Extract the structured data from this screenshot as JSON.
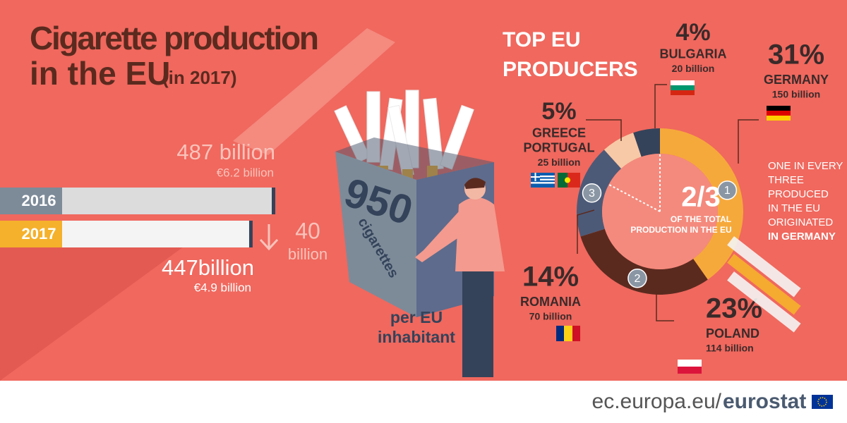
{
  "title": [
    "Cigarette production",
    "in the EU"
  ],
  "subtitle": "(in 2017)",
  "production": {
    "type": "bar",
    "categories": [
      "2016",
      "2017"
    ],
    "values": [
      487,
      447
    ],
    "value_labels": [
      "487 billion",
      "447billion"
    ],
    "value_eur_labels": [
      "€6.2 billion",
      "€4.9 billion"
    ],
    "colors": [
      "#7d8b99",
      "#f5b12b"
    ],
    "change": 40,
    "change_unit": "billion"
  },
  "per_inhabitant": {
    "value": 950,
    "unit": "cigarettes",
    "caption": [
      "per EU",
      "inhabitant"
    ]
  },
  "producers": {
    "type": "pie",
    "title": [
      "TOP EU",
      "PRODUCERS"
    ],
    "segments": [
      {
        "names": [
          "GERMANY"
        ],
        "value": 31,
        "value_label": "31%",
        "amount": "150 billion",
        "rank": "1",
        "color": "#f6a93b"
      },
      {
        "names": [
          "POLAND"
        ],
        "value": 23,
        "value_label": "23%",
        "amount": "114 billion",
        "rank": "2",
        "color": "#5b2a1f"
      },
      {
        "names": [
          "ROMANIA"
        ],
        "value": 14,
        "value_label": "14%",
        "amount": "70 billion",
        "rank": "3",
        "color": "#4c5a78"
      },
      {
        "names": [
          "GREECE",
          "PORTUGAL"
        ],
        "value": 5,
        "value_label": "5%",
        "amount": "25 billion",
        "color": "#f7c9a6"
      },
      {
        "names": [
          "BULGARIA"
        ],
        "value": 4,
        "value_label": "4%",
        "amount": "20 billion",
        "color": "#34435a"
      }
    ],
    "center_label": "2/3",
    "center_caption": [
      "OF THE TOTAL",
      "PRODUCTION IN THE EU"
    ],
    "note": [
      "ONE IN EVERY",
      "THREE",
      "PRODUCED",
      "IN THE EU",
      "ORIGINATED",
      "IN GERMANY"
    ]
  },
  "footer": {
    "site": "ec.europa.eu/",
    "brand": "eurostat"
  }
}
